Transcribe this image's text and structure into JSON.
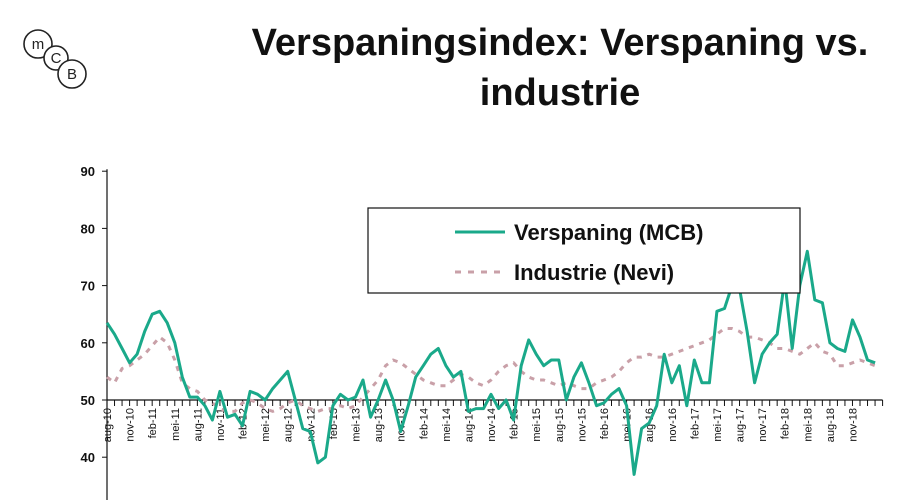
{
  "title": "Verspaningsindex: Verspaning vs. industrie",
  "logo_text": "MCB",
  "chart_data": {
    "type": "line",
    "title": "Verspaningsindex: Verspaning vs. industrie",
    "xlabel": "",
    "ylabel": "",
    "ylim": [
      37,
      90
    ],
    "yticks": [
      40,
      50,
      60,
      70,
      80,
      90
    ],
    "x_axis_crosses_at": 50,
    "legend_placement": "top-right",
    "start_month": "aug-10",
    "x_tick_labels": [
      "aug-10",
      "nov-10",
      "feb-11",
      "mei-11",
      "aug-11",
      "nov-11",
      "feb-12",
      "mei-12",
      "aug-12",
      "nov-12",
      "feb-13",
      "mei-13",
      "aug-13",
      "nov-13",
      "feb-14",
      "mei-14",
      "aug-14",
      "nov-14",
      "feb-15",
      "mei-15",
      "aug-15",
      "nov-15",
      "feb-16",
      "mei-16",
      "aug-16",
      "nov-16",
      "feb-17",
      "mei-17",
      "aug-17",
      "nov-17",
      "feb-18",
      "mei-18",
      "aug-18",
      "nov-18"
    ],
    "series": [
      {
        "name": "Verspaning (MCB)",
        "color": "#1aa98a",
        "style": "solid",
        "values": [
          63.5,
          61.5,
          59,
          56.5,
          58,
          62,
          65,
          65.5,
          63.5,
          60,
          54,
          50.5,
          50.5,
          49,
          46.5,
          51.5,
          47,
          47.5,
          45.5,
          51.5,
          51,
          50,
          52,
          53.5,
          55,
          50,
          45,
          44.5,
          39,
          40,
          49,
          51,
          50,
          50.5,
          53.5,
          47,
          50,
          53.5,
          50,
          44.5,
          49,
          54,
          56,
          58,
          59,
          56,
          54,
          55,
          48,
          48.5,
          48.5,
          51,
          48.5,
          50,
          46.5,
          56,
          60.5,
          58,
          56,
          57,
          57,
          50,
          54,
          56.5,
          53,
          49,
          49.5,
          51,
          52,
          49,
          37,
          45,
          46,
          49,
          58,
          53,
          56,
          49,
          57,
          53,
          53,
          65.5,
          66,
          70,
          69.5,
          62,
          53,
          58,
          60,
          61.5,
          71,
          59,
          70,
          76,
          67.5,
          67,
          60,
          59,
          58.5,
          64,
          61,
          57,
          56.5
        ]
      },
      {
        "name": "Industrie (Nevi)",
        "color": "#c9a0a8",
        "style": "dashed",
        "values": [
          54,
          53,
          55.5,
          56,
          57,
          58,
          59.5,
          61,
          60,
          57,
          53,
          52,
          51.5,
          50,
          49.5,
          48.5,
          48,
          48,
          49.5,
          50,
          49.5,
          48.5,
          48,
          48.5,
          49.5,
          50,
          49,
          48.5,
          48,
          48.5,
          48.5,
          49,
          48.5,
          49,
          50.5,
          52,
          53.5,
          56,
          57,
          56.5,
          55.5,
          54.5,
          53.5,
          53,
          52.5,
          52.5,
          53.5,
          54.5,
          54,
          53,
          52.5,
          53.5,
          55,
          56,
          56.5,
          55,
          54,
          53.5,
          53.5,
          53,
          52.5,
          53,
          52.5,
          52,
          52,
          53,
          53.5,
          54,
          55,
          56.5,
          57.5,
          57.5,
          58,
          57.5,
          57.5,
          58,
          58.5,
          59,
          59.5,
          60,
          60.5,
          61.5,
          62.5,
          62.5,
          62,
          61,
          61,
          60.5,
          60,
          59,
          59,
          58.5,
          58,
          59,
          60,
          58.5,
          58,
          56,
          56,
          56.5,
          57,
          56.5,
          56
        ]
      }
    ]
  }
}
